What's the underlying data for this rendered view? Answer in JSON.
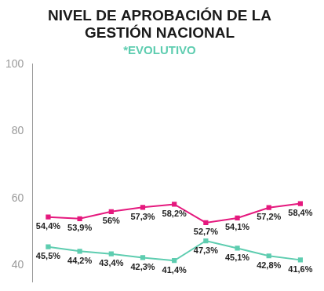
{
  "chart_data": {
    "type": "line",
    "title": [
      "NIVEL DE APROBACIÓN DE LA",
      "GESTIÓN NACIONAL"
    ],
    "subtitle": "*EVOLUTIVO",
    "categories": [
      null,
      null,
      null,
      null,
      null,
      null,
      null,
      null,
      null
    ],
    "series": [
      {
        "color": "#e5197e",
        "marker": "square",
        "values": [
          54.4,
          53.9,
          56,
          57.3,
          58.2,
          52.7,
          54.1,
          57.2,
          58.4
        ],
        "value_labels": [
          "54,4%",
          "53,9%",
          "56%",
          "57,3%",
          "58,2%",
          "52,7%",
          "54,1%",
          "57,2%",
          "58,4%"
        ]
      },
      {
        "color": "#5ecdb0",
        "marker": "square",
        "values": [
          45.5,
          44.2,
          43.4,
          42.3,
          41.4,
          47.3,
          45.1,
          42.8,
          41.6
        ],
        "value_labels": [
          "45,5%",
          "44,2%",
          "43,4%",
          "42,3%",
          "41,4%",
          "47,3%",
          "45,1%",
          "42,8%",
          "41,6%"
        ]
      }
    ],
    "ylim": [
      35,
      100
    ],
    "yticks": [
      40,
      60,
      80,
      100
    ],
    "grid": false,
    "data_labels": true,
    "tick_labels": "y"
  }
}
